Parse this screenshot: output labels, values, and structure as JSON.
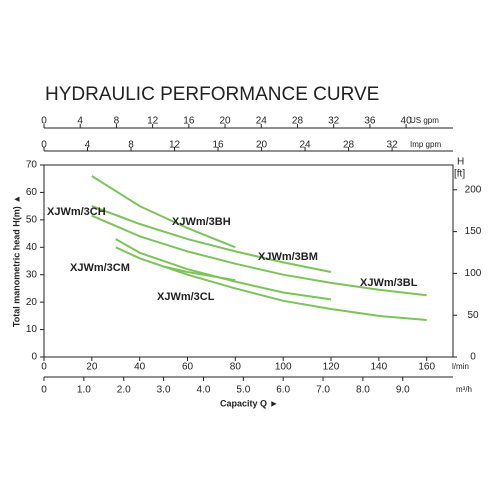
{
  "chart_data": {
    "type": "line",
    "title": "HYDRAULIC PERFORMANCE CURVE",
    "x_label": "Capacity Q ►",
    "y_label": "Total manometric head H(m) ▲",
    "x_unit": "l/min",
    "xlim": [
      0,
      171
    ],
    "xticks": [
      0,
      20,
      40,
      60,
      80,
      100,
      120,
      140,
      160
    ],
    "ylim": [
      0,
      70
    ],
    "yticks": [
      0,
      10,
      20,
      30,
      40,
      50,
      60,
      70
    ],
    "y2_label": "H",
    "y2_unit": "[ft]",
    "y2lim": [
      0,
      229.66
    ],
    "y2ticks": [
      0,
      50,
      100,
      150,
      200
    ],
    "secondary_x_axes": [
      {
        "unit": "m³/h",
        "position": "bottom",
        "lim": [
          0,
          10.26
        ],
        "ticks": [
          {
            "value": 0,
            "label": "0"
          },
          {
            "value": 1,
            "label": "1.0"
          },
          {
            "value": 2,
            "label": "2.0"
          },
          {
            "value": 3,
            "label": "3.0"
          },
          {
            "value": 4,
            "label": "4.0"
          },
          {
            "value": 5,
            "label": "5.0"
          },
          {
            "value": 6,
            "label": "6.0"
          },
          {
            "value": 7,
            "label": "7.0"
          },
          {
            "value": 8,
            "label": "8.0"
          },
          {
            "value": 9,
            "label": "9.0"
          }
        ]
      },
      {
        "unit": "US gpm",
        "position": "top",
        "lim": [
          0,
          45.18
        ],
        "ticks": [
          0,
          4,
          8,
          12,
          16,
          20,
          24,
          28,
          32,
          36,
          40
        ]
      },
      {
        "unit": "Imp gpm",
        "position": "top",
        "lim": [
          0,
          37.6
        ],
        "ticks": [
          0,
          4,
          8,
          12,
          16,
          20,
          24,
          28,
          32
        ]
      }
    ],
    "color": "#7cc35a",
    "series": [
      {
        "name": "XJWm/3BH",
        "x": [
          20,
          40,
          60,
          80
        ],
        "values": [
          66,
          55,
          47,
          40
        ]
      },
      {
        "name": "XJWm/3BM",
        "x": [
          20,
          40,
          60,
          80,
          100,
          120
        ],
        "values": [
          55,
          48.5,
          43,
          38.5,
          34.5,
          31
        ]
      },
      {
        "name": "XJWm/3BL",
        "x": [
          20,
          40,
          60,
          80,
          100,
          120,
          140,
          160
        ],
        "values": [
          51.5,
          44,
          38.5,
          34,
          30,
          27,
          24.5,
          22.5
        ]
      },
      {
        "name": "XJWm/3CH",
        "x": [
          30,
          40,
          60,
          80,
          100,
          120
        ],
        "values": [
          43,
          38,
          32,
          27.5,
          23.5,
          21
        ]
      },
      {
        "name": "XJWm/3CM",
        "x": [
          30,
          40,
          60,
          80,
          100,
          120,
          140,
          160
        ],
        "values": [
          40,
          36,
          30,
          25,
          20.5,
          17.5,
          15,
          13.5
        ]
      },
      {
        "name": "XJWm/3CL",
        "x": [
          50,
          60,
          80
        ],
        "values": [
          33,
          31,
          28
        ]
      }
    ]
  }
}
